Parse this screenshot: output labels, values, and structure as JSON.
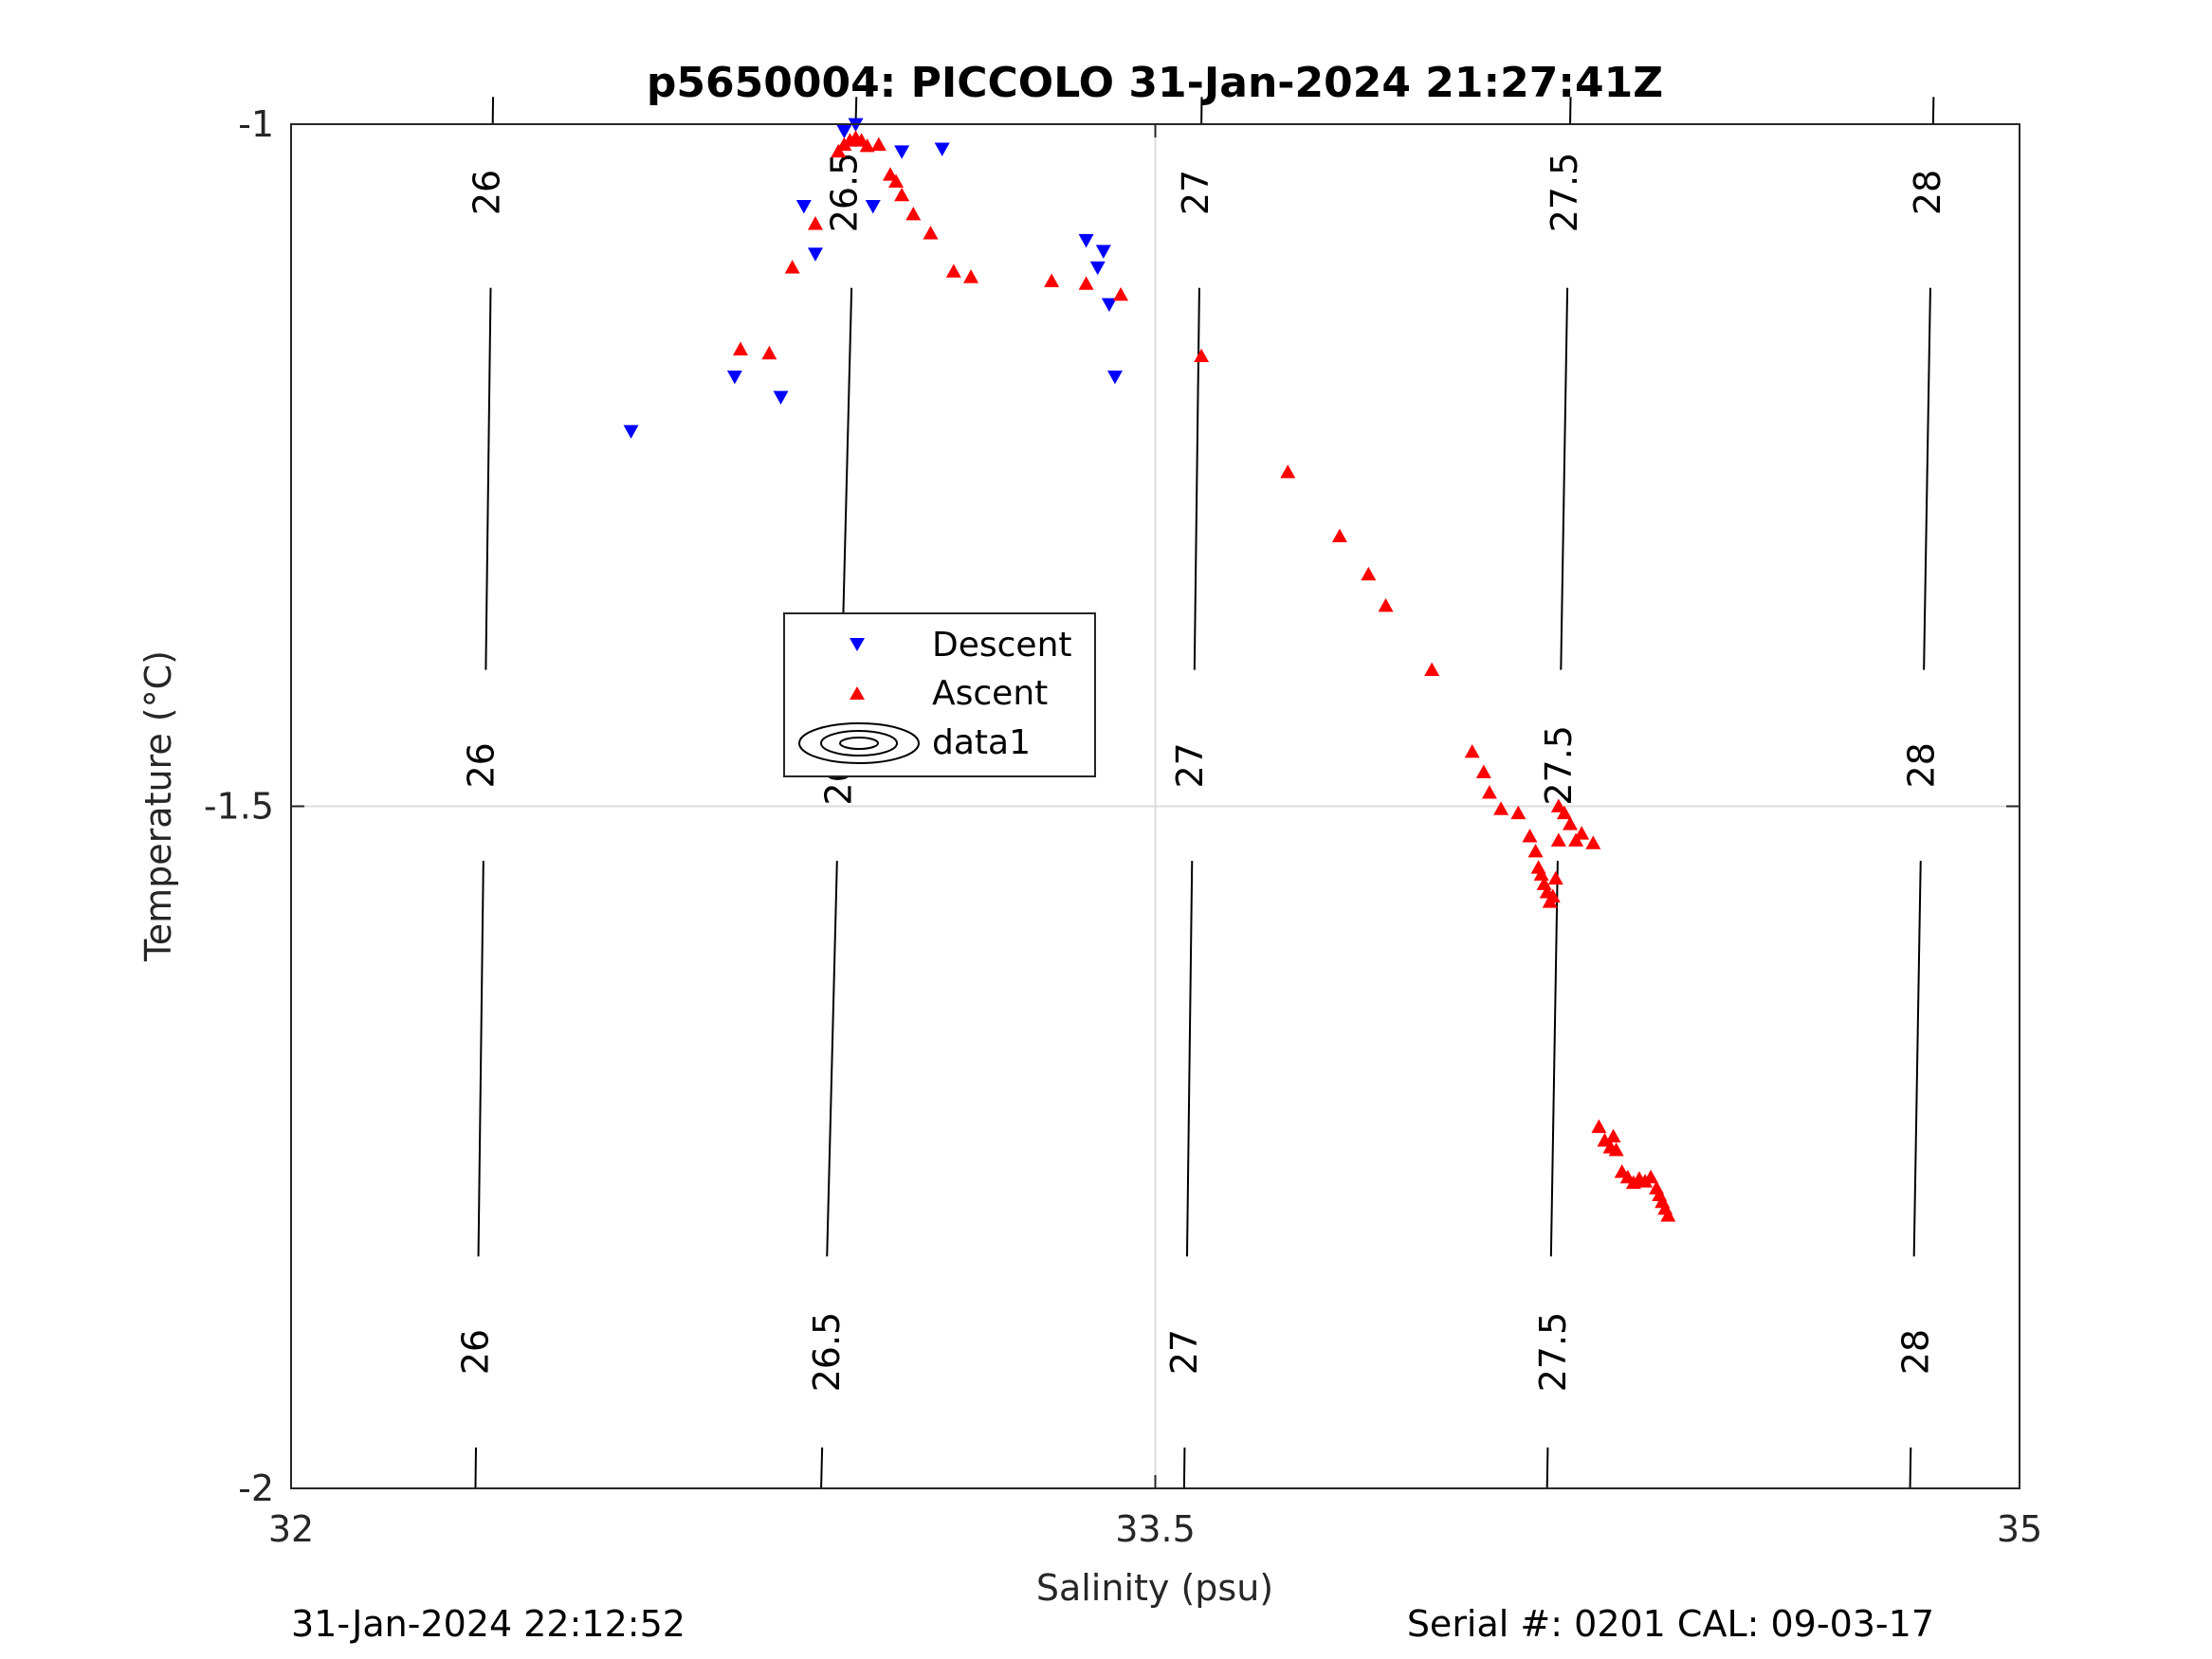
{
  "chart_data": {
    "type": "scatter",
    "title": "p5650004: PICCOLO 31-Jan-2024 21:27:41Z",
    "xlabel": "Salinity (psu)",
    "ylabel": "Temperature (°C)",
    "xlim": [
      32,
      35
    ],
    "ylim": [
      -2,
      -1
    ],
    "xticks": [
      "32",
      "33.5",
      "35"
    ],
    "xtick_values": [
      32,
      33.5,
      35
    ],
    "yticks": [
      "-2",
      "-1.5",
      "-1"
    ],
    "ytick_values": [
      -2,
      -1.5,
      -1
    ],
    "grid": true,
    "legend_position": "center-left",
    "contours": [
      {
        "label": "26",
        "x": [
          32.35,
          32.32
        ],
        "label_x": [
          32.34,
          32.33,
          32.32
        ]
      },
      {
        "label": "26.5",
        "x": [
          32.98,
          32.92
        ],
        "label_x": [
          32.96,
          32.95,
          32.93
        ]
      },
      {
        "label": "27",
        "x": [
          33.58,
          33.55
        ],
        "label_x": [
          33.57,
          33.56,
          33.55
        ]
      },
      {
        "label": "27.5",
        "x": [
          34.22,
          34.18
        ],
        "label_x": [
          34.21,
          34.2,
          34.19
        ]
      },
      {
        "label": "28",
        "x": [
          34.85,
          34.81
        ],
        "label_x": [
          34.84,
          34.83,
          34.82
        ]
      }
    ],
    "contour_label_y": [
      -1.05,
      -1.47,
      -1.9
    ],
    "series": [
      {
        "name": "Descent",
        "marker": "triangle-down",
        "color": "#0000ff",
        "points": [
          [
            32.59,
            -1.225
          ],
          [
            32.77,
            -1.185
          ],
          [
            32.85,
            -1.2
          ],
          [
            32.89,
            -1.06
          ],
          [
            32.91,
            -1.095
          ],
          [
            32.96,
            -1.005
          ],
          [
            32.98,
            -1.0
          ],
          [
            33.01,
            -1.06
          ],
          [
            33.06,
            -1.02
          ],
          [
            33.13,
            -1.018
          ],
          [
            33.38,
            -1.085
          ],
          [
            33.4,
            -1.105
          ],
          [
            33.41,
            -1.093
          ],
          [
            33.42,
            -1.132
          ],
          [
            33.43,
            -1.185
          ]
        ]
      },
      {
        "name": "Ascent",
        "marker": "triangle-up",
        "color": "#ff0000",
        "points": [
          [
            32.78,
            -1.165
          ],
          [
            32.83,
            -1.168
          ],
          [
            32.87,
            -1.105
          ],
          [
            32.91,
            -1.073
          ],
          [
            32.95,
            -1.02
          ],
          [
            32.96,
            -1.015
          ],
          [
            32.97,
            -1.012
          ],
          [
            32.98,
            -1.01
          ],
          [
            32.99,
            -1.012
          ],
          [
            33.0,
            -1.016
          ],
          [
            33.02,
            -1.015
          ],
          [
            33.04,
            -1.037
          ],
          [
            33.05,
            -1.042
          ],
          [
            33.06,
            -1.052
          ],
          [
            33.08,
            -1.066
          ],
          [
            33.11,
            -1.08
          ],
          [
            33.15,
            -1.108
          ],
          [
            33.18,
            -1.112
          ],
          [
            33.32,
            -1.115
          ],
          [
            33.38,
            -1.117
          ],
          [
            33.44,
            -1.125
          ],
          [
            33.58,
            -1.17
          ],
          [
            33.73,
            -1.255
          ],
          [
            33.82,
            -1.302
          ],
          [
            33.87,
            -1.33
          ],
          [
            33.9,
            -1.353
          ],
          [
            33.98,
            -1.4
          ],
          [
            34.05,
            -1.46
          ],
          [
            34.07,
            -1.475
          ],
          [
            34.08,
            -1.49
          ],
          [
            34.1,
            -1.502
          ],
          [
            34.13,
            -1.505
          ],
          [
            34.15,
            -1.522
          ],
          [
            34.16,
            -1.533
          ],
          [
            34.165,
            -1.545
          ],
          [
            34.17,
            -1.55
          ],
          [
            34.175,
            -1.557
          ],
          [
            34.18,
            -1.563
          ],
          [
            34.185,
            -1.57
          ],
          [
            34.19,
            -1.566
          ],
          [
            34.195,
            -1.553
          ],
          [
            34.2,
            -1.525
          ],
          [
            34.2,
            -1.5
          ],
          [
            34.21,
            -1.505
          ],
          [
            34.22,
            -1.513
          ],
          [
            34.23,
            -1.525
          ],
          [
            34.24,
            -1.52
          ],
          [
            34.26,
            -1.527
          ],
          [
            34.27,
            -1.735
          ],
          [
            34.28,
            -1.745
          ],
          [
            34.29,
            -1.75
          ],
          [
            34.295,
            -1.742
          ],
          [
            34.3,
            -1.752
          ],
          [
            34.31,
            -1.768
          ],
          [
            34.32,
            -1.772
          ],
          [
            34.33,
            -1.776
          ],
          [
            34.34,
            -1.773
          ],
          [
            34.35,
            -1.775
          ],
          [
            34.36,
            -1.772
          ],
          [
            34.37,
            -1.78
          ],
          [
            34.375,
            -1.785
          ],
          [
            34.38,
            -1.79
          ],
          [
            34.385,
            -1.795
          ],
          [
            34.39,
            -1.8
          ]
        ]
      }
    ],
    "legend_entries": [
      "Descent",
      "Ascent",
      "data1"
    ]
  },
  "footer": {
    "left": "31-Jan-2024 22:12:52",
    "right": "Serial #: 0201  CAL: 09-03-17"
  }
}
